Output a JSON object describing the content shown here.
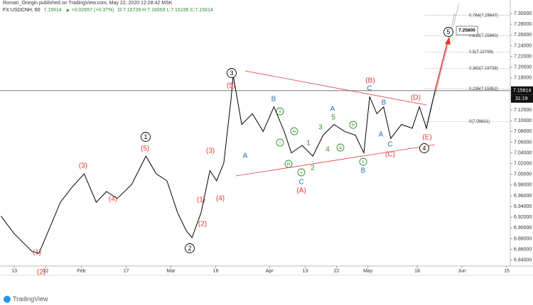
{
  "header": {
    "published": "Roman_Onegin published on TradingView.com, May 22, 2020 12:28:42 MSK",
    "symbol": "FX:USDCNH, 60",
    "price": "7.15614",
    "change": "▲ +0.02657 (+0.37%)",
    "ohlc": "O:7.15728 H:7.16059 L:7.15195 C:7.15614"
  },
  "footer": "TradingView",
  "chart_data": {
    "type": "line",
    "color": "#000000",
    "x": [
      -3,
      0,
      2.4,
      4,
      5.5,
      8,
      10.3,
      12.7,
      15.6,
      18.3,
      20.6,
      23,
      26.2,
      29.4,
      31.7,
      34.1,
      36.5,
      38.4,
      39.7,
      41.7,
      43.7,
      45.2,
      46.8,
      48.4,
      48.9,
      50.8,
      53.2,
      55.6,
      58,
      60.3,
      61.9,
      64.3,
      66.7,
      69,
      71.4,
      73.8,
      76.2,
      78.1,
      79.4,
      81,
      82.5,
      84.1,
      86.5,
      88.9,
      90.5,
      92.1,
      94
    ],
    "values": [
      6.922,
      6.889,
      6.869,
      6.856,
      6.853,
      6.902,
      6.948,
      6.974,
      7.001,
      6.948,
      6.968,
      6.955,
      6.981,
      7.034,
      7.001,
      6.988,
      6.928,
      6.895,
      6.882,
      6.928,
      7.007,
      6.988,
      7.021,
      7.139,
      7.185,
      7.093,
      7.113,
      7.08,
      7.126,
      7.08,
      7.04,
      7.054,
      7.034,
      7.073,
      7.093,
      7.08,
      7.073,
      7.04,
      7.145,
      7.113,
      7.126,
      7.067,
      7.093,
      7.086,
      7.126,
      7.086,
      7.156
    ],
    "xlim": [
      -3.2,
      110.8
    ],
    "xticks": [
      {
        "value": 0,
        "label": "13"
      },
      {
        "value": 7,
        "label": "22"
      },
      {
        "value": 15,
        "label": "Feb"
      },
      {
        "value": 25,
        "label": "17"
      },
      {
        "value": 35,
        "label": "Mar"
      },
      {
        "value": 45,
        "label": "16"
      },
      {
        "value": 57,
        "label": "Apr"
      },
      {
        "value": 65,
        "label": "13"
      },
      {
        "value": 72,
        "label": "22"
      },
      {
        "value": 79,
        "label": "May"
      },
      {
        "value": 90,
        "label": "18"
      },
      {
        "value": 100,
        "label": "Jun"
      },
      {
        "value": 110,
        "label": "15"
      }
    ],
    "ylim": [
      6.833,
      7.312
    ],
    "yticks": [
      {
        "value": 6.84,
        "label": "6.84000"
      },
      {
        "value": 6.86,
        "label": "6.86000"
      },
      {
        "value": 6.88,
        "label": "6.88000"
      },
      {
        "value": 6.9,
        "label": "6.90000"
      },
      {
        "value": 6.92,
        "label": "6.92000"
      },
      {
        "value": 6.94,
        "label": "6.94000"
      },
      {
        "value": 6.96,
        "label": "6.96000"
      },
      {
        "value": 6.98,
        "label": "6.98000"
      },
      {
        "value": 7,
        "label": "7.00000"
      },
      {
        "value": 7.02,
        "label": "7.02000"
      },
      {
        "value": 7.04,
        "label": "7.04000"
      },
      {
        "value": 7.06,
        "label": "7.06000"
      },
      {
        "value": 7.08,
        "label": "7.08000"
      },
      {
        "value": 7.1,
        "label": "7.10000"
      },
      {
        "value": 7.12,
        "label": "7.12000"
      },
      {
        "value": 7.18,
        "label": "7.18000"
      },
      {
        "value": 7.2,
        "label": "7.20000"
      },
      {
        "value": 7.22,
        "label": "7.22000"
      },
      {
        "value": 7.24,
        "label": "7.24000"
      },
      {
        "value": 7.26,
        "label": "7.26000"
      },
      {
        "value": 7.28,
        "label": "7.28000"
      },
      {
        "value": 7.3,
        "label": "7.30000"
      }
    ],
    "last_price": {
      "value": 7.15614,
      "label": "7.15614"
    },
    "countdown": "31:19",
    "fib_levels": [
      {
        "value": 7.29647,
        "label": "0.764(7.29647)"
      },
      {
        "value": 7.2586,
        "label": "0.618(7.25860)"
      },
      {
        "value": 7.22799,
        "label": "0.5(7.22799)"
      },
      {
        "value": 7.19739,
        "label": "0.382(7.19739)"
      },
      {
        "value": 7.15952,
        "label": "0.236(7.15952)"
      },
      {
        "value": 7.09831,
        "label": "0(7.09831)"
      }
    ],
    "target_label": "7.25800",
    "annotations": [
      {
        "text": "(1)",
        "color": "#e53935"
      },
      {
        "text": "(2)",
        "color": "#e53935"
      },
      {
        "text": "(3)",
        "color": "#e53935"
      },
      {
        "text": "(4)",
        "color": "#e53935"
      },
      {
        "text": "(5)",
        "color": "#e53935"
      },
      {
        "text": "(1)",
        "color": "#e53935"
      },
      {
        "text": "(2)",
        "color": "#e53935"
      },
      {
        "text": "(3)",
        "color": "#e53935"
      },
      {
        "text": "(4)",
        "color": "#e53935"
      },
      {
        "text": "(5)",
        "color": "#e53935"
      },
      {
        "text": "(A)",
        "color": "#e53935"
      },
      {
        "text": "(B)",
        "color": "#e53935"
      },
      {
        "text": "(C)",
        "color": "#e53935"
      },
      {
        "text": "(D)",
        "color": "#e53935"
      },
      {
        "text": "(E)",
        "color": "#e53935"
      },
      {
        "text": "2",
        "color": "#000000",
        "circled": true
      },
      {
        "text": "1",
        "color": "#000000",
        "circled": true
      },
      {
        "text": "3",
        "color": "#000000",
        "circled": true
      },
      {
        "text": "4",
        "color": "#000000",
        "circled": true
      },
      {
        "text": "5",
        "color": "#000000",
        "circled": true
      },
      {
        "text": "A",
        "color": "#1e6fb8"
      },
      {
        "text": "B",
        "color": "#1e6fb8"
      },
      {
        "text": "C",
        "color": "#1e6fb8"
      },
      {
        "text": "A",
        "color": "#1e6fb8"
      },
      {
        "text": "B",
        "color": "#1e6fb8"
      },
      {
        "text": "C",
        "color": "#1e6fb8"
      },
      {
        "text": "B",
        "color": "#1e6fb8"
      },
      {
        "text": "A",
        "color": "#1e6fb8"
      },
      {
        "text": "C",
        "color": "#1e6fb8"
      },
      {
        "text": "i",
        "color": "#2e8b2e",
        "circled": true
      },
      {
        "text": "ii",
        "color": "#2e8b2e",
        "circled": true
      },
      {
        "text": "iii",
        "color": "#2e8b2e",
        "circled": true
      },
      {
        "text": "iv",
        "color": "#2e8b2e",
        "circled": true
      },
      {
        "text": "v",
        "color": "#2e8b2e",
        "circled": true
      },
      {
        "text": "1",
        "color": "#2e8b2e"
      },
      {
        "text": "2",
        "color": "#2e8b2e"
      },
      {
        "text": "3",
        "color": "#2e8b2e"
      },
      {
        "text": "4",
        "color": "#2e8b2e"
      },
      {
        "text": "5",
        "color": "#2e8b2e"
      },
      {
        "text": "a",
        "color": "#2e8b2e",
        "circled": true
      },
      {
        "text": "b",
        "color": "#2e8b2e",
        "circled": true
      },
      {
        "text": "c",
        "color": "#2e8b2e",
        "circled": true
      }
    ]
  }
}
